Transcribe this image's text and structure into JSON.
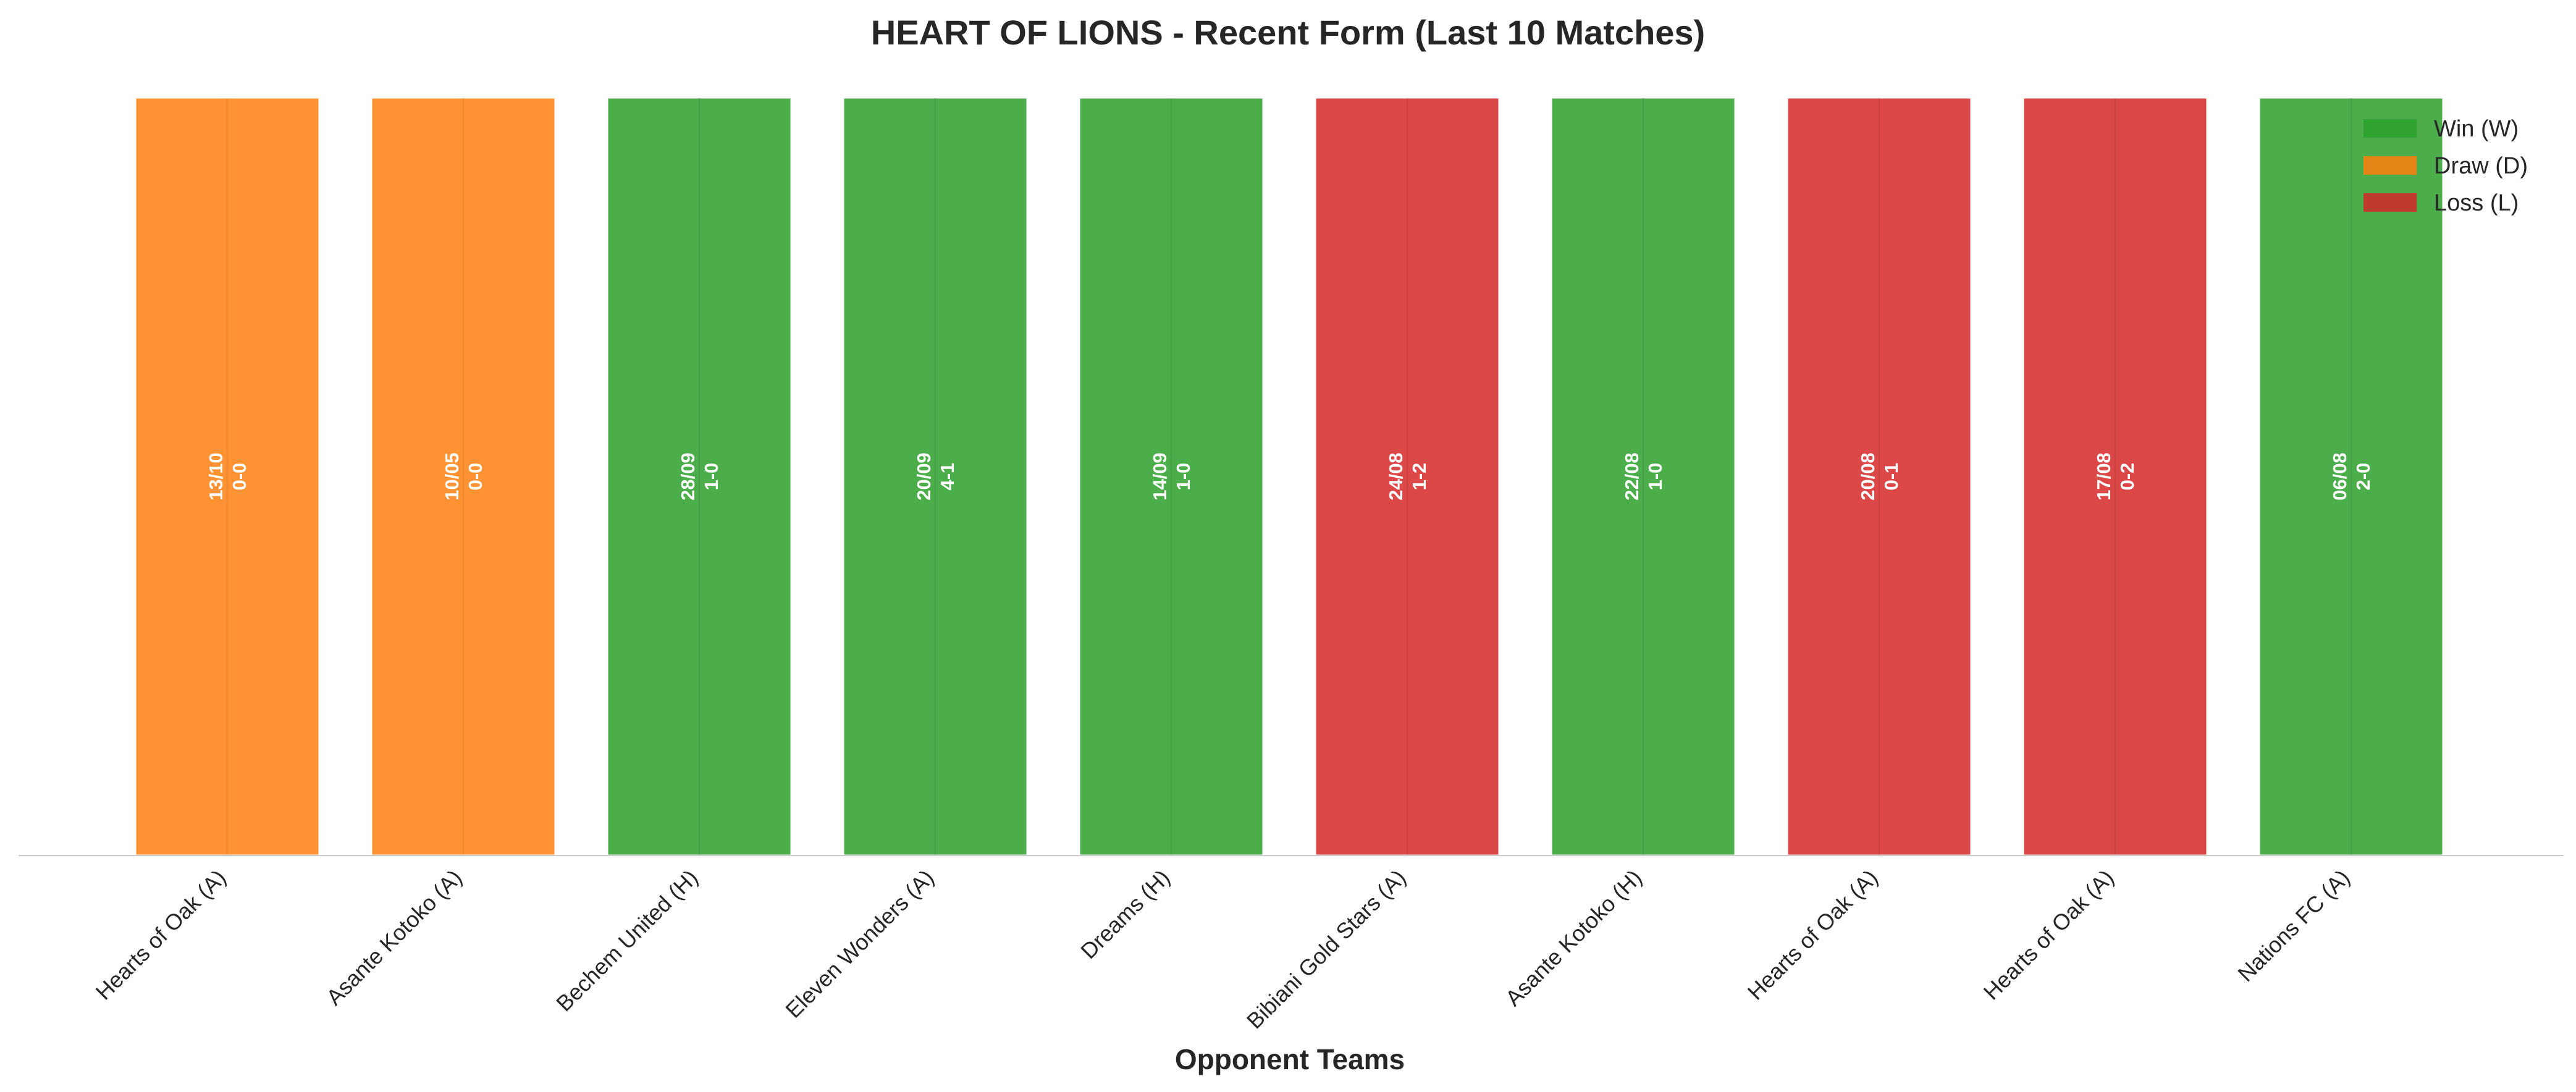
{
  "chart_data": {
    "type": "bar",
    "title": "HEART OF LIONS - Recent Form (Last 10 Matches)",
    "xlabel": "Opponent Teams",
    "ylabel": "",
    "grid": false,
    "legend_position": "top-right",
    "categories": [
      "Hearts of Oak (A)",
      "Asante Kotoko (A)",
      "Bechem United (H)",
      "Eleven Wonders (A)",
      "Dreams (H)",
      "Bibiani Gold Stars (A)",
      "Asante Kotoko (H)",
      "Hearts of Oak (A)",
      "Hearts of Oak (A)",
      "Nations FC (A)"
    ],
    "values": [
      1,
      1,
      1,
      1,
      1,
      1,
      1,
      1,
      1,
      1
    ],
    "results": [
      "D",
      "D",
      "W",
      "W",
      "W",
      "L",
      "W",
      "L",
      "L",
      "W"
    ],
    "dates": [
      "13/10",
      "10/05",
      "28/09",
      "20/09",
      "14/09",
      "24/08",
      "22/08",
      "20/08",
      "17/08",
      "06/08"
    ],
    "scores": [
      "0-0",
      "0-0",
      "1-0",
      "4-1",
      "1-0",
      "1-2",
      "1-0",
      "0-1",
      "0-2",
      "2-0"
    ],
    "ylim": [
      0,
      1
    ],
    "legend": [
      {
        "key": "W",
        "label": "Win (W)",
        "color": "#2ca02c"
      },
      {
        "key": "D",
        "label": "Draw (D)",
        "color": "#ff7f0e"
      },
      {
        "key": "L",
        "label": "Loss (L)",
        "color": "#d62728"
      }
    ]
  }
}
